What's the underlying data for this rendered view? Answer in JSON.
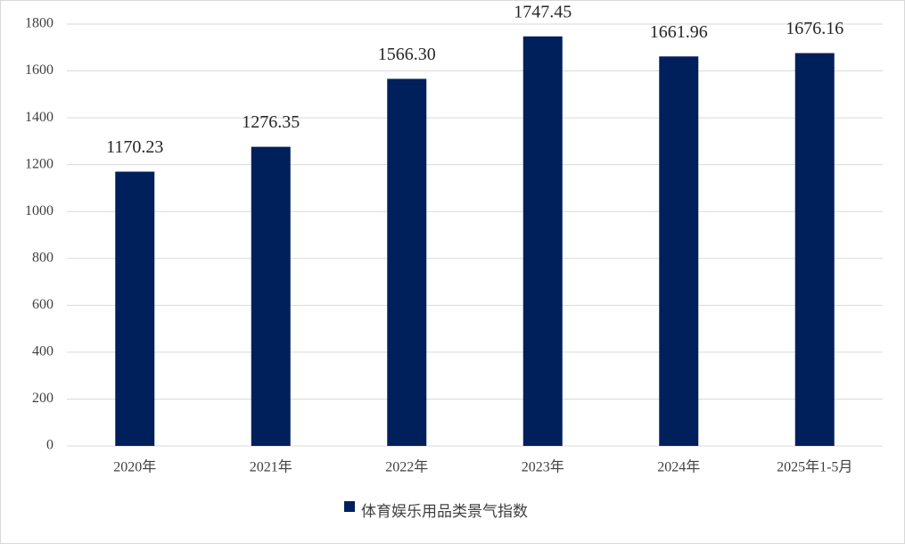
{
  "chart_data": {
    "type": "bar",
    "categories": [
      "2020年",
      "2021年",
      "2022年",
      "2023年",
      "2024年",
      "2025年1-5月"
    ],
    "series": [
      {
        "name": "体育娱乐用品类景气指数",
        "color": "#00205b",
        "values": [
          1170.23,
          1276.35,
          1566.3,
          1747.45,
          1661.96,
          1676.16
        ],
        "value_labels": [
          "1170.23",
          "1276.35",
          "1566.30",
          "1747.45",
          "1661.96",
          "1676.16"
        ]
      }
    ],
    "ylim": [
      0,
      1800
    ],
    "yticks": [
      0,
      200,
      400,
      600,
      800,
      1000,
      1200,
      1400,
      1600,
      1800
    ],
    "grid": true,
    "legend": "bottom"
  }
}
